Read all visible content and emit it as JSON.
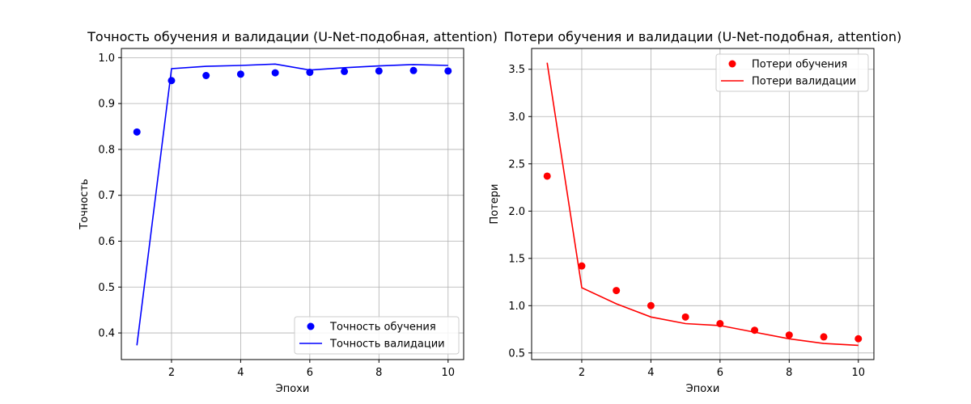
{
  "chart_data": [
    {
      "type": "line",
      "title": "Точность обучения и валидации (U-Net-подобная, attention)",
      "xlabel": "Эпохи",
      "ylabel": "Точность",
      "x": [
        1,
        2,
        3,
        4,
        5,
        6,
        7,
        8,
        9,
        10
      ],
      "xlim": [
        0.55,
        10.45
      ],
      "ylim": [
        0.342,
        1.02
      ],
      "xticks": [
        2,
        4,
        6,
        8,
        10
      ],
      "yticks": [
        0.4,
        0.5,
        0.6,
        0.7,
        0.8,
        0.9,
        1.0
      ],
      "ytick_labels": [
        "0.4",
        "0.5",
        "0.6",
        "0.7",
        "0.8",
        "0.9",
        "1.0"
      ],
      "grid": true,
      "legend_position": "lower-right",
      "series": [
        {
          "name": "Точность обучения",
          "style": "markers",
          "color": "#0000ff",
          "values": [
            0.838,
            0.95,
            0.961,
            0.964,
            0.967,
            0.968,
            0.97,
            0.971,
            0.972,
            0.971
          ]
        },
        {
          "name": "Точность валидации",
          "style": "line",
          "color": "#0000ff",
          "values": [
            0.373,
            0.976,
            0.981,
            0.983,
            0.986,
            0.973,
            0.978,
            0.982,
            0.985,
            0.983
          ]
        }
      ]
    },
    {
      "type": "line",
      "title": "Потери обучения и валидации (U-Net-подобная, attention)",
      "xlabel": "Эпохи",
      "ylabel": "Потери",
      "x": [
        1,
        2,
        3,
        4,
        5,
        6,
        7,
        8,
        9,
        10
      ],
      "xlim": [
        0.55,
        10.45
      ],
      "ylim": [
        0.43,
        3.72
      ],
      "xticks": [
        2,
        4,
        6,
        8,
        10
      ],
      "yticks": [
        0.5,
        1.0,
        1.5,
        2.0,
        2.5,
        3.0,
        3.5
      ],
      "ytick_labels": [
        "0.5",
        "1.0",
        "1.5",
        "2.0",
        "2.5",
        "3.0",
        "3.5"
      ],
      "grid": true,
      "legend_position": "upper-right",
      "series": [
        {
          "name": "Потери обучения",
          "style": "markers",
          "color": "#ff0000",
          "values": [
            2.37,
            1.42,
            1.16,
            1.0,
            0.88,
            0.81,
            0.74,
            0.69,
            0.67,
            0.65
          ]
        },
        {
          "name": "Потери валидации",
          "style": "line",
          "color": "#ff0000",
          "values": [
            3.57,
            1.19,
            1.02,
            0.88,
            0.81,
            0.79,
            0.72,
            0.65,
            0.6,
            0.58
          ]
        }
      ]
    }
  ]
}
